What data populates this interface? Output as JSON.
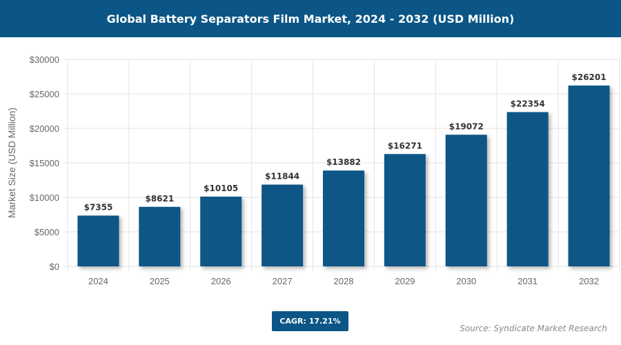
{
  "title": "Global Battery Separators Film Market, 2024 - 2032 (USD Million)",
  "cagr_label": "CAGR: 17.21%",
  "source": "Source: Syndicate Market Research",
  "colors": {
    "bar": "#0b5686",
    "header": "#0b5686"
  },
  "chart_data": {
    "type": "bar",
    "title": "Global Battery Separators Film Market, 2024 - 2032 (USD Million)",
    "xlabel": "",
    "ylabel": "Market Size (USD Million)",
    "categories": [
      "2024",
      "2025",
      "2026",
      "2027",
      "2028",
      "2029",
      "2030",
      "2031",
      "2032"
    ],
    "values": [
      7355,
      8621,
      10105,
      11844,
      13882,
      16271,
      19072,
      22354,
      26201
    ],
    "data_labels": [
      "$7355",
      "$8621",
      "$10105",
      "$11844",
      "$13882",
      "$16271",
      "$19072",
      "$22354",
      "$26201"
    ],
    "ylim": [
      0,
      30000
    ],
    "yticks": [
      0,
      5000,
      10000,
      15000,
      20000,
      25000,
      30000
    ],
    "ytick_labels": [
      "$0",
      "$5000",
      "$10000",
      "$15000",
      "$20000",
      "$25000",
      "$30000"
    ],
    "grid": true,
    "legend": "none"
  }
}
